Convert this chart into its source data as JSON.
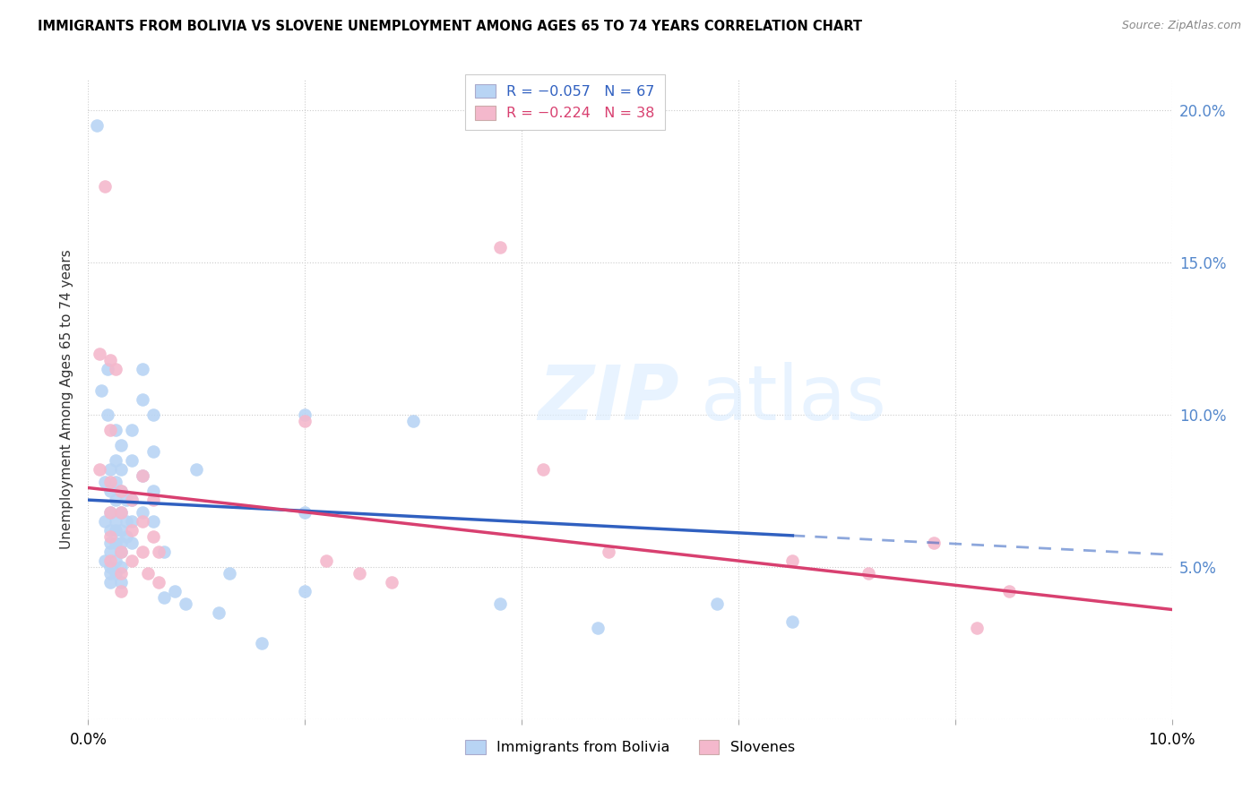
{
  "title": "IMMIGRANTS FROM BOLIVIA VS SLOVENE UNEMPLOYMENT AMONG AGES 65 TO 74 YEARS CORRELATION CHART",
  "source": "Source: ZipAtlas.com",
  "ylabel": "Unemployment Among Ages 65 to 74 years",
  "xlim": [
    0.0,
    0.1
  ],
  "ylim": [
    0.0,
    0.21
  ],
  "yticks": [
    0.0,
    0.05,
    0.1,
    0.15,
    0.2
  ],
  "ytick_labels": [
    "",
    "5.0%",
    "10.0%",
    "15.0%",
    "20.0%"
  ],
  "xticks": [
    0.0,
    0.02,
    0.04,
    0.06,
    0.08,
    0.1
  ],
  "xtick_labels": [
    "0.0%",
    "",
    "",
    "",
    "",
    "10.0%"
  ],
  "legend_label_bolivia": "Immigrants from Bolivia",
  "legend_label_slovenes": "Slovenes",
  "color_bolivia": "#b8d4f4",
  "color_slovenes": "#f4b8cc",
  "color_line_bolivia": "#3060c0",
  "color_line_slovenes": "#d84070",
  "bolivia_line_intercept": 0.072,
  "bolivia_line_slope": -0.18,
  "slovene_line_intercept": 0.076,
  "slovene_line_slope": -0.4,
  "bolivia_line_end": 0.065,
  "slovene_line_end": 0.1,
  "bolivia_points": [
    [
      0.0008,
      0.195
    ],
    [
      0.0012,
      0.108
    ],
    [
      0.0015,
      0.078
    ],
    [
      0.0015,
      0.065
    ],
    [
      0.0015,
      0.052
    ],
    [
      0.0018,
      0.115
    ],
    [
      0.0018,
      0.1
    ],
    [
      0.002,
      0.082
    ],
    [
      0.002,
      0.075
    ],
    [
      0.002,
      0.068
    ],
    [
      0.002,
      0.062
    ],
    [
      0.002,
      0.058
    ],
    [
      0.002,
      0.055
    ],
    [
      0.002,
      0.05
    ],
    [
      0.002,
      0.048
    ],
    [
      0.002,
      0.045
    ],
    [
      0.0025,
      0.095
    ],
    [
      0.0025,
      0.085
    ],
    [
      0.0025,
      0.078
    ],
    [
      0.0025,
      0.072
    ],
    [
      0.0025,
      0.065
    ],
    [
      0.0025,
      0.062
    ],
    [
      0.0025,
      0.058
    ],
    [
      0.0025,
      0.052
    ],
    [
      0.0025,
      0.048
    ],
    [
      0.003,
      0.09
    ],
    [
      0.003,
      0.082
    ],
    [
      0.003,
      0.075
    ],
    [
      0.003,
      0.068
    ],
    [
      0.003,
      0.062
    ],
    [
      0.003,
      0.058
    ],
    [
      0.003,
      0.055
    ],
    [
      0.003,
      0.05
    ],
    [
      0.003,
      0.045
    ],
    [
      0.0035,
      0.072
    ],
    [
      0.0035,
      0.065
    ],
    [
      0.0035,
      0.06
    ],
    [
      0.004,
      0.095
    ],
    [
      0.004,
      0.085
    ],
    [
      0.004,
      0.072
    ],
    [
      0.004,
      0.065
    ],
    [
      0.004,
      0.058
    ],
    [
      0.005,
      0.115
    ],
    [
      0.005,
      0.105
    ],
    [
      0.005,
      0.08
    ],
    [
      0.005,
      0.068
    ],
    [
      0.006,
      0.1
    ],
    [
      0.006,
      0.088
    ],
    [
      0.006,
      0.075
    ],
    [
      0.006,
      0.065
    ],
    [
      0.007,
      0.055
    ],
    [
      0.007,
      0.04
    ],
    [
      0.008,
      0.042
    ],
    [
      0.009,
      0.038
    ],
    [
      0.01,
      0.082
    ],
    [
      0.012,
      0.035
    ],
    [
      0.013,
      0.048
    ],
    [
      0.016,
      0.025
    ],
    [
      0.02,
      0.1
    ],
    [
      0.02,
      0.068
    ],
    [
      0.02,
      0.042
    ],
    [
      0.03,
      0.098
    ],
    [
      0.038,
      0.038
    ],
    [
      0.047,
      0.03
    ],
    [
      0.058,
      0.038
    ],
    [
      0.065,
      0.032
    ]
  ],
  "slovene_points": [
    [
      0.001,
      0.12
    ],
    [
      0.001,
      0.082
    ],
    [
      0.0015,
      0.175
    ],
    [
      0.002,
      0.118
    ],
    [
      0.002,
      0.095
    ],
    [
      0.002,
      0.078
    ],
    [
      0.002,
      0.068
    ],
    [
      0.002,
      0.06
    ],
    [
      0.002,
      0.052
    ],
    [
      0.0025,
      0.115
    ],
    [
      0.003,
      0.075
    ],
    [
      0.003,
      0.068
    ],
    [
      0.003,
      0.055
    ],
    [
      0.003,
      0.048
    ],
    [
      0.003,
      0.042
    ],
    [
      0.004,
      0.072
    ],
    [
      0.004,
      0.062
    ],
    [
      0.004,
      0.052
    ],
    [
      0.005,
      0.08
    ],
    [
      0.005,
      0.065
    ],
    [
      0.005,
      0.055
    ],
    [
      0.0055,
      0.048
    ],
    [
      0.006,
      0.072
    ],
    [
      0.006,
      0.06
    ],
    [
      0.0065,
      0.055
    ],
    [
      0.0065,
      0.045
    ],
    [
      0.02,
      0.098
    ],
    [
      0.022,
      0.052
    ],
    [
      0.025,
      0.048
    ],
    [
      0.028,
      0.045
    ],
    [
      0.038,
      0.155
    ],
    [
      0.042,
      0.082
    ],
    [
      0.048,
      0.055
    ],
    [
      0.065,
      0.052
    ],
    [
      0.072,
      0.048
    ],
    [
      0.078,
      0.058
    ],
    [
      0.082,
      0.03
    ],
    [
      0.085,
      0.042
    ]
  ]
}
